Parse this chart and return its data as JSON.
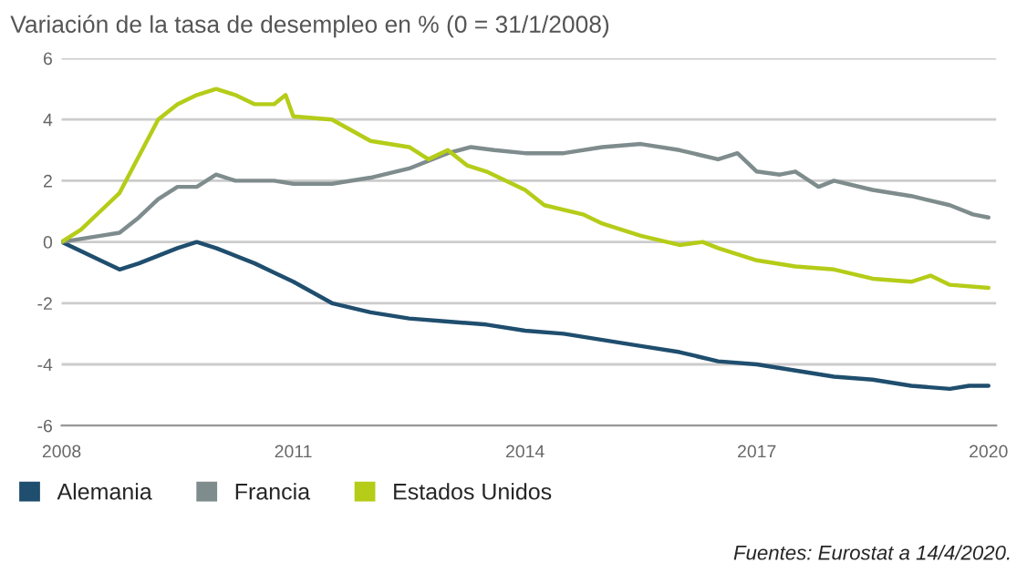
{
  "chart_data": {
    "type": "line",
    "title": "Variación de la tasa de desempleo en % (0 = 31/1/2008)",
    "annotations": [
      "Fuentes: Eurostat a 14/4/2020."
    ],
    "xlim": [
      2008,
      2020.1
    ],
    "xticks": [
      2008,
      2011,
      2014,
      2017,
      2020
    ],
    "ylim": [
      -6,
      6
    ],
    "yticks": [
      -6,
      -4,
      -2,
      0,
      2,
      4,
      6
    ],
    "grid": "y",
    "legend": "bottom left",
    "line_style": "solid",
    "series": [
      {
        "name": "Alemania",
        "color": "#1f4e6e",
        "x": [
          2008,
          2008.5,
          2008.75,
          2009,
          2009.5,
          2009.75,
          2010,
          2010.5,
          2010.75,
          2011,
          2011.5,
          2012,
          2012.5,
          2013,
          2013.5,
          2014,
          2014.5,
          2015,
          2015.5,
          2016,
          2016.5,
          2017,
          2017.5,
          2018,
          2018.5,
          2019,
          2019.5,
          2019.75,
          2020
        ],
        "values": [
          0,
          -0.6,
          -0.9,
          -0.7,
          -0.2,
          0,
          -0.2,
          -0.7,
          -1,
          -1.3,
          -2,
          -2.3,
          -2.5,
          -2.6,
          -2.7,
          -2.9,
          -3,
          -3.2,
          -3.4,
          -3.6,
          -3.9,
          -4,
          -4.2,
          -4.4,
          -4.5,
          -4.7,
          -4.8,
          -4.7,
          -4.7
        ]
      },
      {
        "name": "Francia",
        "color": "#7f8c8d",
        "x": [
          2008,
          2008.5,
          2008.75,
          2009,
          2009.25,
          2009.5,
          2009.75,
          2010,
          2010.25,
          2010.75,
          2011,
          2011.5,
          2012,
          2012.5,
          2013,
          2013.3,
          2013.6,
          2014,
          2014.5,
          2015,
          2015.5,
          2016,
          2016.5,
          2016.75,
          2017,
          2017.3,
          2017.5,
          2017.8,
          2018,
          2018.5,
          2019,
          2019.5,
          2019.8,
          2020
        ],
        "values": [
          0,
          0.2,
          0.3,
          0.8,
          1.4,
          1.8,
          1.8,
          2.2,
          2,
          2,
          1.9,
          1.9,
          2.1,
          2.4,
          2.9,
          3.1,
          3,
          2.9,
          2.9,
          3.1,
          3.2,
          3,
          2.7,
          2.9,
          2.3,
          2.2,
          2.3,
          1.8,
          2,
          1.7,
          1.5,
          1.2,
          0.9,
          0.8
        ]
      },
      {
        "name": "Estados Unidos",
        "color": "#b5cc18",
        "x": [
          2008,
          2008.25,
          2008.5,
          2008.75,
          2009,
          2009.25,
          2009.5,
          2009.75,
          2010,
          2010.25,
          2010.5,
          2010.75,
          2010.9,
          2011,
          2011.5,
          2012,
          2012.5,
          2012.75,
          2013,
          2013.25,
          2013.5,
          2014,
          2014.25,
          2014.75,
          2015,
          2015.5,
          2016,
          2016.3,
          2016.5,
          2017,
          2017.5,
          2018,
          2018.5,
          2019,
          2019.25,
          2019.5,
          2020
        ],
        "values": [
          0,
          0.4,
          1,
          1.6,
          2.8,
          4,
          4.5,
          4.8,
          5,
          4.8,
          4.5,
          4.5,
          4.8,
          4.1,
          4,
          3.3,
          3.1,
          2.7,
          3,
          2.5,
          2.3,
          1.7,
          1.2,
          0.9,
          0.6,
          0.2,
          -0.1,
          0,
          -0.2,
          -0.6,
          -0.8,
          -0.9,
          -1.2,
          -1.3,
          -1.1,
          -1.4,
          -1.5
        ]
      }
    ]
  }
}
